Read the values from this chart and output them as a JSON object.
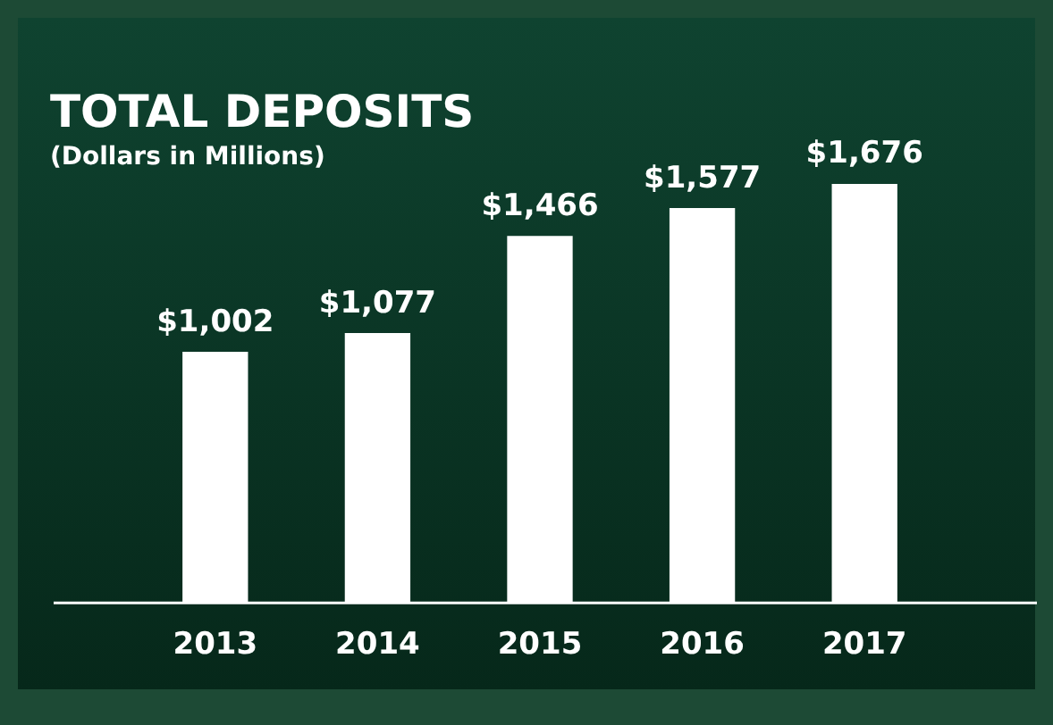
{
  "chart_data": {
    "type": "bar",
    "title": "TOTAL DEPOSITS",
    "subtitle": "(Dollars in Millions)",
    "categories": [
      "2013",
      "2014",
      "2015",
      "2016",
      "2017"
    ],
    "values": [
      1002,
      1077,
      1466,
      1577,
      1676
    ],
    "value_labels": [
      "$1,002",
      "$1,077",
      "$1,466",
      "$1,577",
      "$1,676"
    ],
    "color": "#ffffff",
    "grid": false,
    "legend": false
  }
}
